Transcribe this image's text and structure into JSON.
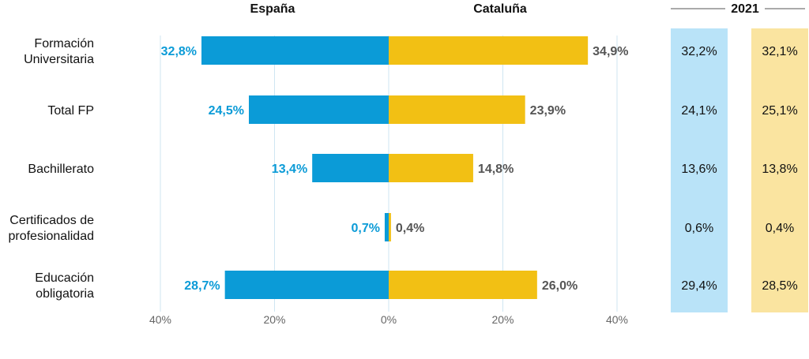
{
  "chart_data": {
    "type": "bar",
    "layout": "diverging-horizontal",
    "series": [
      {
        "name": "España",
        "color": "#0b9bd7",
        "value_color": "#0b9bd7",
        "values": [
          32.8,
          24.5,
          13.4,
          0.7,
          28.7
        ],
        "labels": [
          "32,8%",
          "24,5%",
          "13,4%",
          "0,7%",
          "28,7%"
        ]
      },
      {
        "name": "Cataluña",
        "color": "#f2c014",
        "value_color": "#555555",
        "values": [
          34.9,
          23.9,
          14.8,
          0.4,
          26.0
        ],
        "labels": [
          "34,9%",
          "23,9%",
          "14,8%",
          "0,4%",
          "26,0%"
        ]
      }
    ],
    "categories": [
      [
        "Formación",
        "Universitaria"
      ],
      [
        "Total FP"
      ],
      [
        "Bachillerato"
      ],
      [
        "Certificados de",
        "profesionalidad"
      ],
      [
        "Educación",
        "obligatoria"
      ]
    ],
    "x_ticks": [
      "40%",
      "20%",
      "0%",
      "20%",
      "40%"
    ],
    "x_tick_values": [
      -40,
      -20,
      0,
      20,
      40
    ],
    "xlim": [
      -40,
      40
    ],
    "grid": true,
    "comparison": {
      "title": "2021",
      "columns": [
        {
          "color": "#b9e3f8",
          "values": [
            "32,2%",
            "24,1%",
            "13,6%",
            "0,6%",
            "29,4%"
          ]
        },
        {
          "color": "#fae4a0",
          "values": [
            "32,1%",
            "25,1%",
            "13,8%",
            "0,4%",
            "28,5%"
          ]
        }
      ]
    }
  }
}
